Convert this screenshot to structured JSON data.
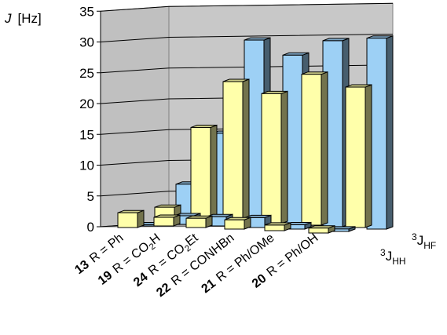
{
  "chart_data": {
    "type": "bar",
    "ylabel_symbol": "J",
    "ylabel_unit": "[Hz]",
    "ylim": [
      0,
      35
    ],
    "yticks": [
      0,
      5,
      10,
      15,
      20,
      25,
      30,
      35
    ],
    "grid": true,
    "categories": [
      {
        "number": "13",
        "text": "R = Ph"
      },
      {
        "number": "19",
        "text": "R = CO",
        "sub": "2",
        "tail": "H"
      },
      {
        "number": "24",
        "text": "R = CO",
        "sub": "2",
        "tail": "Et"
      },
      {
        "number": "22",
        "text": "R = CONHBn"
      },
      {
        "number": "21",
        "text": "R = Ph/OMe"
      },
      {
        "number": "20",
        "text": "R = Ph/OH"
      }
    ],
    "series": [
      {
        "id": "JHH",
        "sup": "3",
        "symbol": "J",
        "sub": "HH",
        "color": "#ffffaa",
        "rows": [
          {
            "back": 2.4,
            "front": 2.4
          },
          {
            "back": 15.1,
            "front": 1.4
          },
          {
            "back": 22.8,
            "front": 1.5
          },
          {
            "back": 21.1,
            "front": 1.5
          },
          {
            "back": 24.5,
            "front": 0.9
          },
          {
            "back": 22.8,
            "front": 0.8
          }
        ]
      },
      {
        "id": "JHF",
        "sup": "3",
        "symbol": "J",
        "sub": "HF",
        "color": "#9dd0f5",
        "rows": [
          {
            "back": 6.4,
            "front": 0.0
          },
          {
            "back": 14.4,
            "front": 1.4
          },
          {
            "back": 29.8,
            "front": 1.5
          },
          {
            "back": 27.6,
            "front": 1.6
          },
          {
            "back": 30.2,
            "front": 0.7
          },
          {
            "back": 31.0,
            "front": 0.4
          }
        ]
      }
    ]
  }
}
